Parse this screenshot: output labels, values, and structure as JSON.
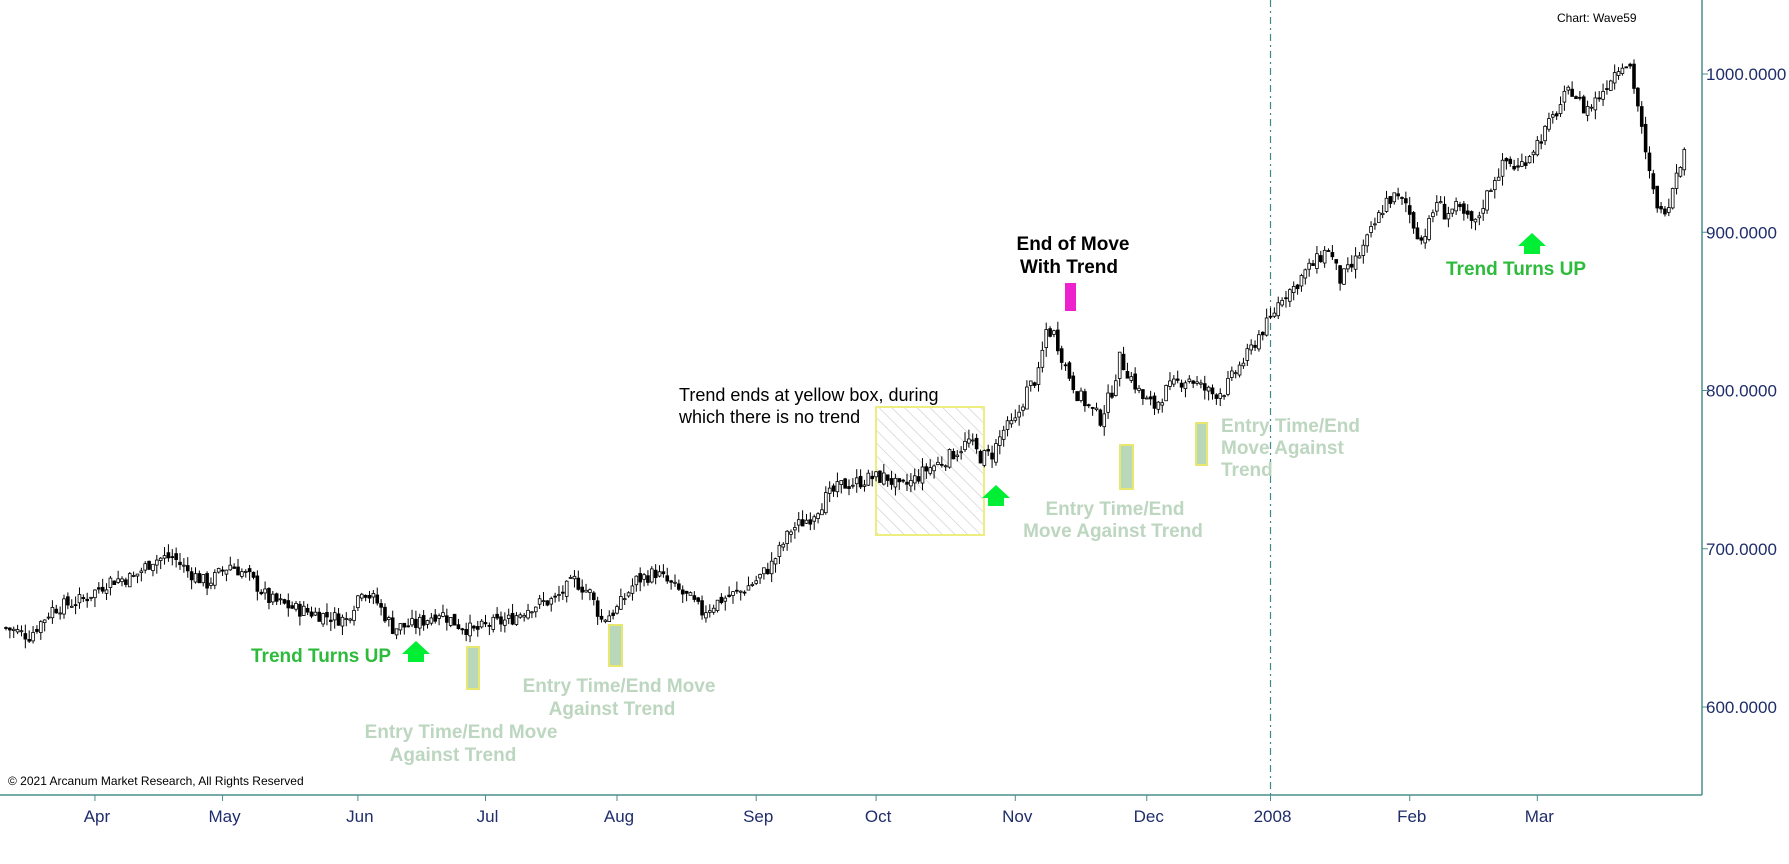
{
  "header": {
    "chart_name": "Chart: Wave59"
  },
  "footer": {
    "copyright": "© 2021 Arcanum Market Research, All Rights Reserved"
  },
  "colors": {
    "axis": "#4a8f8a",
    "tick_text": "#1f2d6b",
    "trend_up_green": "#2dbb3c",
    "arrow_green": "#00ee33",
    "entry_box_fill": "#b9d8b9",
    "entry_box_border": "#e8e870",
    "entry_text": "#bcd6bf",
    "end_move_box": "#ee22cc",
    "yellow_box_border": "#eeee80"
  },
  "annotations": {
    "trend_up_1": "Trend Turns UP",
    "trend_up_2": "Trend Turns UP",
    "entry_1": [
      "Entry Time/End Move",
      "Against Trend"
    ],
    "entry_2": [
      "Entry Time/End Move",
      "Against Trend"
    ],
    "entry_3": [
      "Entry Time/End",
      "Move Against Trend"
    ],
    "entry_4": [
      "Entry Time/End",
      "Move Against",
      "Trend"
    ],
    "trend_ends": [
      "Trend ends at yellow box, during",
      "which there is no trend"
    ],
    "end_of_move": [
      "End of Move",
      "With Trend"
    ]
  },
  "chart_data": {
    "type": "candlestick",
    "title": "",
    "ylim": [
      545,
      1040
    ],
    "y_ticks": [
      "600.0000",
      "700.0000",
      "800.0000",
      "900.0000",
      "1000.0000"
    ],
    "y_tick_values": [
      600,
      700,
      800,
      900,
      1000
    ],
    "x_ticks": [
      "Apr",
      "May",
      "Jun",
      "Jul",
      "Aug",
      "Sep",
      "Oct",
      "Nov",
      "Dec",
      "2008",
      "Feb",
      "Mar"
    ],
    "x_tick_bar_index": [
      23,
      56,
      91,
      124,
      158,
      194,
      225,
      261,
      295,
      327,
      363,
      396
    ],
    "vertical_marker_bar_index": 327,
    "grid": false,
    "close_path": [
      [
        0,
        650
      ],
      [
        6,
        645
      ],
      [
        12,
        662
      ],
      [
        20,
        668
      ],
      [
        27,
        680
      ],
      [
        33,
        682
      ],
      [
        38,
        693
      ],
      [
        43,
        695
      ],
      [
        47,
        686
      ],
      [
        52,
        678
      ],
      [
        58,
        690
      ],
      [
        63,
        682
      ],
      [
        68,
        668
      ],
      [
        75,
        662
      ],
      [
        82,
        658
      ],
      [
        88,
        655
      ],
      [
        92,
        675
      ],
      [
        96,
        666
      ],
      [
        100,
        650
      ],
      [
        106,
        652
      ],
      [
        112,
        660
      ],
      [
        117,
        652
      ],
      [
        121,
        648
      ],
      [
        125,
        652
      ],
      [
        130,
        655
      ],
      [
        136,
        664
      ],
      [
        142,
        668
      ],
      [
        147,
        680
      ],
      [
        151,
        672
      ],
      [
        154,
        655
      ],
      [
        158,
        662
      ],
      [
        163,
        680
      ],
      [
        168,
        685
      ],
      [
        173,
        675
      ],
      [
        177,
        668
      ],
      [
        180,
        660
      ],
      [
        185,
        668
      ],
      [
        190,
        673
      ],
      [
        194,
        680
      ],
      [
        198,
        690
      ],
      [
        203,
        712
      ],
      [
        208,
        720
      ],
      [
        212,
        732
      ],
      [
        216,
        740
      ],
      [
        220,
        742
      ],
      [
        224,
        745
      ],
      [
        228,
        745
      ],
      [
        231,
        738
      ],
      [
        234,
        742
      ],
      [
        238,
        750
      ],
      [
        242,
        755
      ],
      [
        246,
        762
      ],
      [
        249,
        768
      ],
      [
        252,
        758
      ],
      [
        255,
        760
      ],
      [
        258,
        775
      ],
      [
        261,
        780
      ],
      [
        264,
        800
      ],
      [
        267,
        810
      ],
      [
        269,
        838
      ],
      [
        271,
        836
      ],
      [
        274,
        815
      ],
      [
        277,
        798
      ],
      [
        280,
        790
      ],
      [
        283,
        782
      ],
      [
        286,
        800
      ],
      [
        288,
        820
      ],
      [
        291,
        808
      ],
      [
        294,
        795
      ],
      [
        297,
        790
      ],
      [
        300,
        800
      ],
      [
        303,
        805
      ],
      [
        306,
        808
      ],
      [
        309,
        802
      ],
      [
        312,
        798
      ],
      [
        315,
        800
      ],
      [
        318,
        812
      ],
      [
        321,
        822
      ],
      [
        324,
        835
      ],
      [
        327,
        845
      ],
      [
        330,
        860
      ],
      [
        333,
        865
      ],
      [
        336,
        875
      ],
      [
        339,
        882
      ],
      [
        342,
        890
      ],
      [
        345,
        870
      ],
      [
        348,
        878
      ],
      [
        351,
        890
      ],
      [
        354,
        905
      ],
      [
        357,
        920
      ],
      [
        359,
        922
      ],
      [
        362,
        918
      ],
      [
        364,
        905
      ],
      [
        366,
        895
      ],
      [
        368,
        905
      ],
      [
        370,
        920
      ],
      [
        372,
        912
      ],
      [
        375,
        915
      ],
      [
        378,
        908
      ],
      [
        380,
        905
      ],
      [
        382,
        918
      ],
      [
        385,
        935
      ],
      [
        388,
        945
      ],
      [
        391,
        940
      ],
      [
        394,
        950
      ],
      [
        397,
        960
      ],
      [
        400,
        972
      ],
      [
        403,
        985
      ],
      [
        405,
        990
      ],
      [
        408,
        978
      ],
      [
        410,
        980
      ],
      [
        413,
        990
      ],
      [
        415,
        998
      ],
      [
        418,
        1008
      ],
      [
        420,
        1005
      ],
      [
        422,
        980
      ],
      [
        424,
        948
      ],
      [
        426,
        925
      ],
      [
        428,
        912
      ],
      [
        430,
        920
      ],
      [
        432,
        940
      ],
      [
        434,
        950
      ]
    ]
  }
}
